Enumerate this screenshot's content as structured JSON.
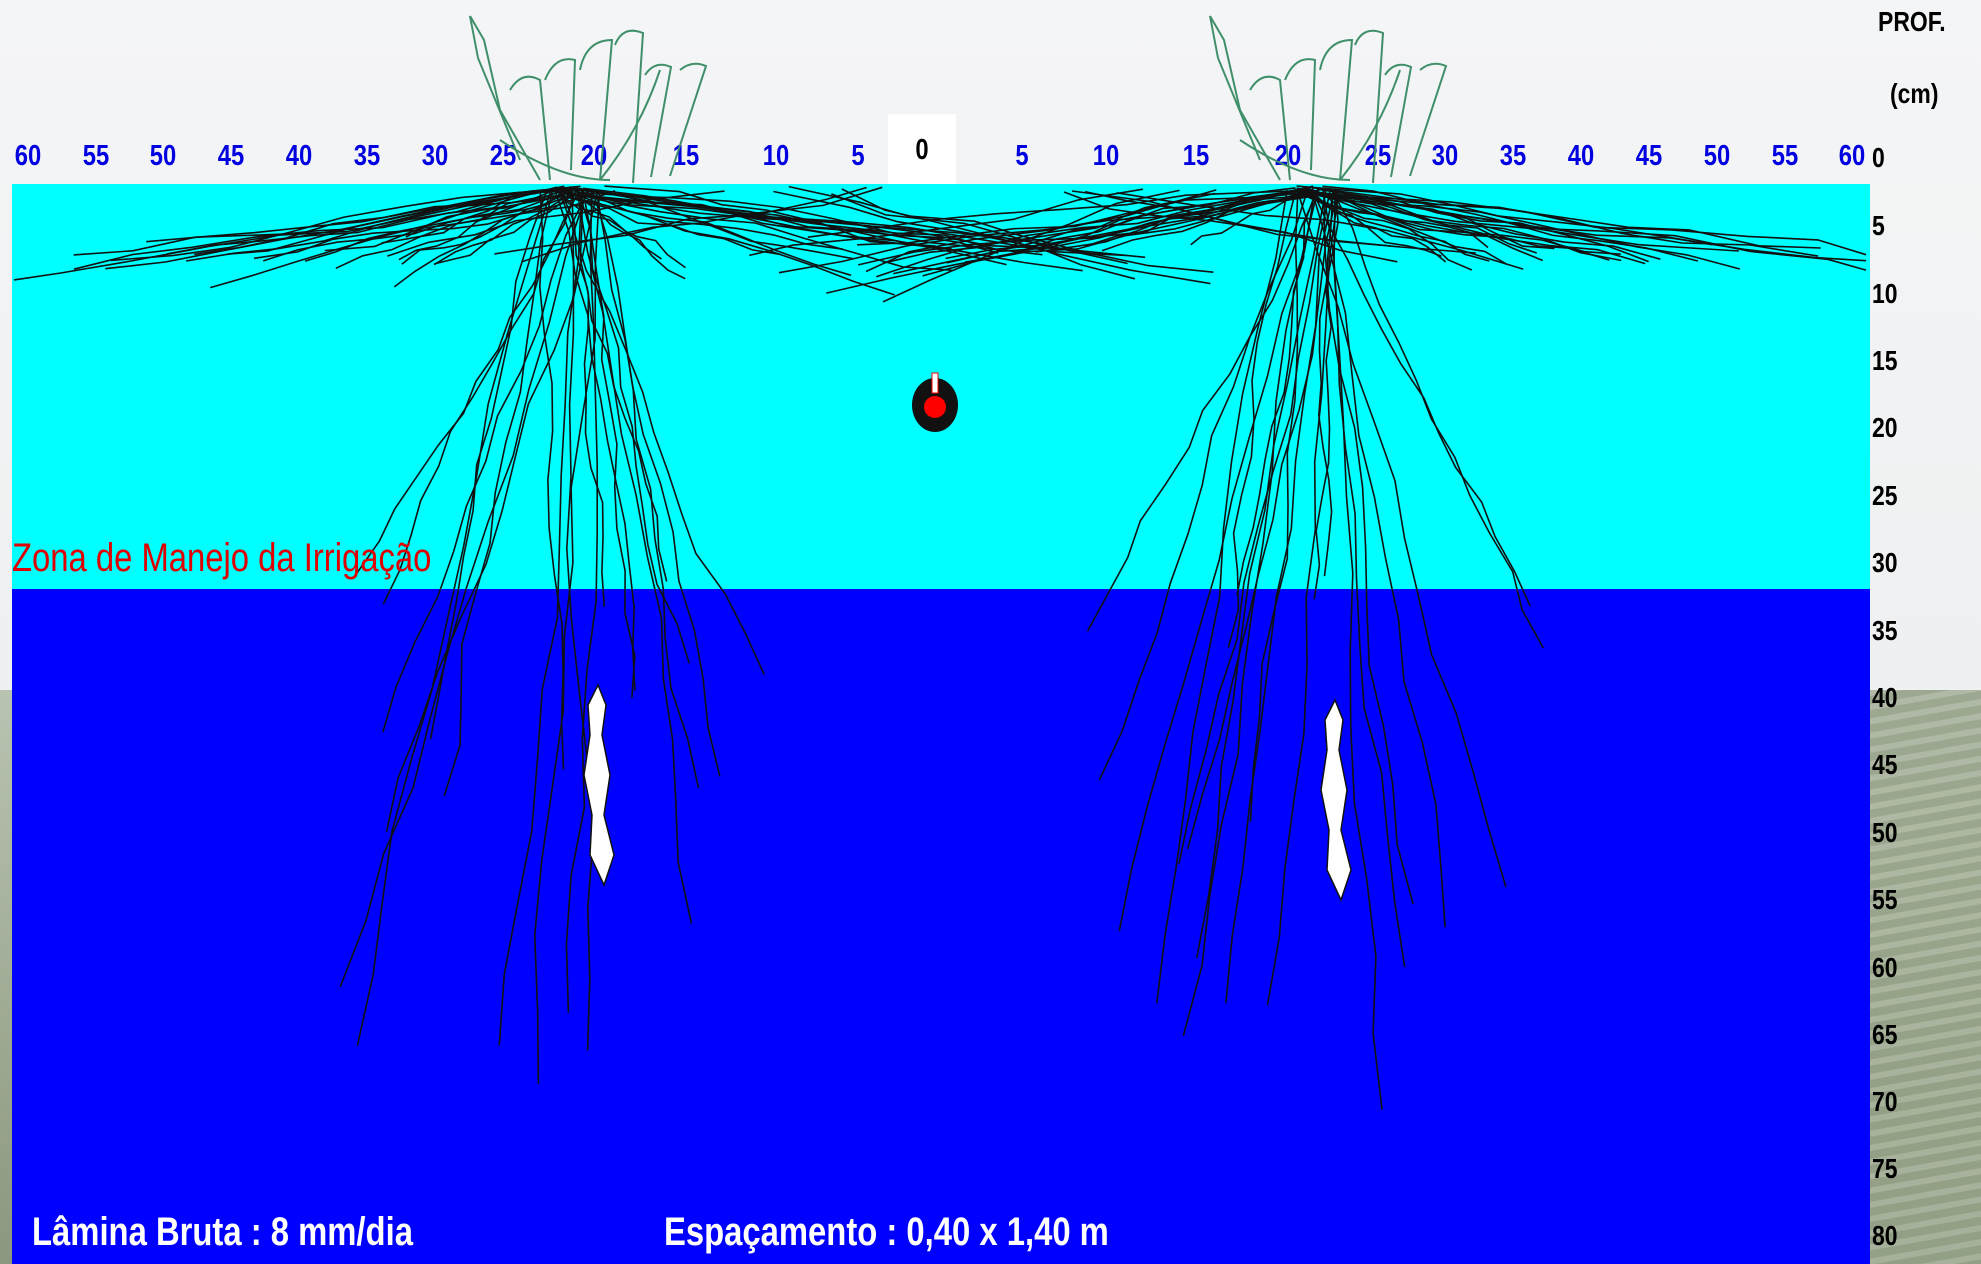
{
  "top_axis": {
    "left_ticks": [
      "60",
      "55",
      "50",
      "45",
      "40",
      "35",
      "30",
      "25",
      "20",
      "15",
      "10",
      "5"
    ],
    "center": "0",
    "right_ticks": [
      "5",
      "10",
      "15",
      "20",
      "25",
      "30",
      "35",
      "40",
      "45",
      "50",
      "55",
      "60"
    ]
  },
  "depth_axis": {
    "title": "PROF.",
    "unit": "(cm)",
    "ticks": [
      "0",
      "5",
      "10",
      "15",
      "20",
      "25",
      "30",
      "35",
      "40",
      "45",
      "50",
      "55",
      "60",
      "65",
      "70",
      "75",
      "80"
    ]
  },
  "zone_label": "Zona de Manejo da Irrigação",
  "lamina_bruta": "Lâmina Bruta : 8 mm/dia",
  "espacamento": "Espaçamento : 0,40 x 1,40 m",
  "colors": {
    "management_zone": "#00ffff",
    "deep_soil": "#0000ff",
    "roots": "#111111",
    "plant": "#3f8f6a",
    "tick_blue": "#0000e0",
    "zone_label": "#e00000",
    "emitter": "#ff0000"
  },
  "icons": [
    "sugarcane-plant-icon",
    "drip-emitter-icon",
    "tuber-icon"
  ]
}
